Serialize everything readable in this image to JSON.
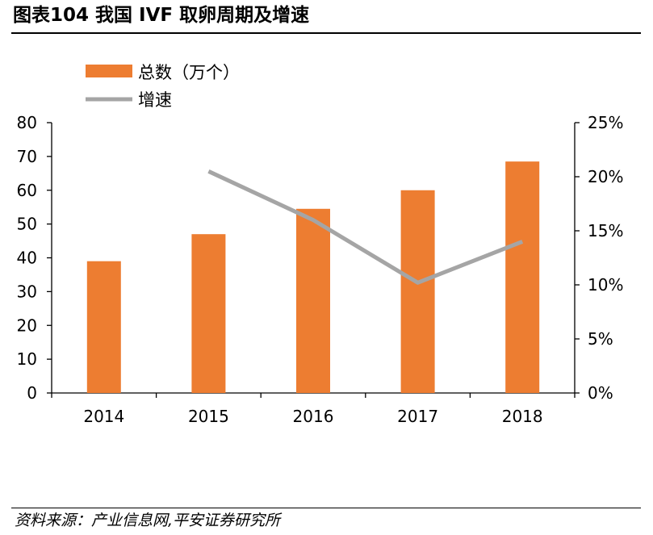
{
  "figure": {
    "title": "图表104 我国 IVF 取卵周期及增速",
    "source": "资料来源：产业信息网,平安证券研究所"
  },
  "colors": {
    "bar": "#ED7D31",
    "line": "#A5A5A5",
    "axis": "#000000"
  },
  "chart_data": {
    "type": "bar",
    "categories": [
      "2014",
      "2015",
      "2016",
      "2017",
      "2018"
    ],
    "series": [
      {
        "name": "总数（万个）",
        "type": "bar",
        "axis": "left",
        "values": [
          39,
          47,
          54.5,
          60,
          68.5
        ]
      },
      {
        "name": "增速",
        "type": "line",
        "axis": "right",
        "values": [
          null,
          0.205,
          0.16,
          0.102,
          0.14
        ]
      }
    ],
    "y_left": {
      "range": [
        0,
        80
      ],
      "ticks": [
        "0",
        "10",
        "20",
        "30",
        "40",
        "50",
        "60",
        "70",
        "80"
      ]
    },
    "y_right": {
      "range": [
        0,
        0.25
      ],
      "ticks": [
        "0%",
        "5%",
        "10%",
        "15%",
        "20%",
        "25%"
      ]
    },
    "legend_position": "top-left",
    "grid": false
  }
}
